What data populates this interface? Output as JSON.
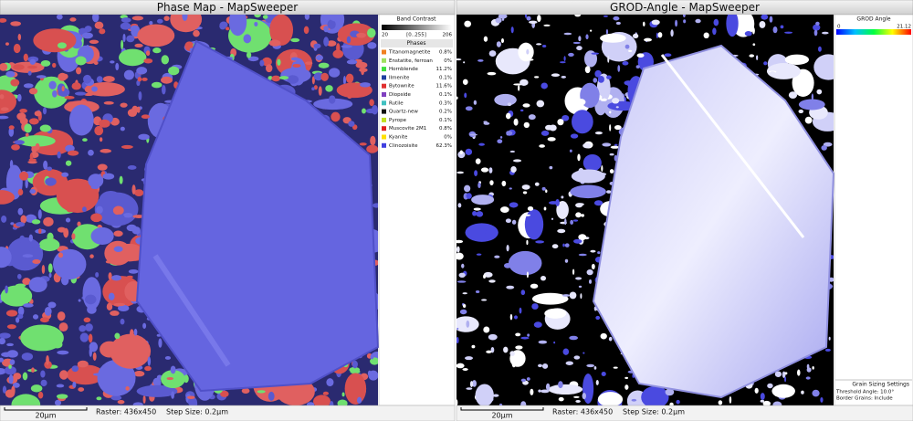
{
  "left_panel": {
    "title": "Phase Map - MapSweeper",
    "band_contrast": {
      "title": "Band Contrast",
      "min": "20",
      "range": "[0..255]",
      "max": "206"
    },
    "phases": {
      "title": "Phases",
      "rows": [
        {
          "name": "Titanomagnetite",
          "value": "0.8%",
          "color": "#f08020"
        },
        {
          "name": "Enstatite, ferroan",
          "value": "0%",
          "color": "#a0e060"
        },
        {
          "name": "Hornblende",
          "value": "11.2%",
          "color": "#40e040"
        },
        {
          "name": "Ilmenite",
          "value": "0.1%",
          "color": "#2040a0"
        },
        {
          "name": "Bytownite",
          "value": "11.6%",
          "color": "#e03030"
        },
        {
          "name": "Diopside",
          "value": "0.1%",
          "color": "#8040c0"
        },
        {
          "name": "Rutile",
          "value": "0.3%",
          "color": "#40c0c0"
        },
        {
          "name": "Quartz-new",
          "value": "0.2%",
          "color": "#101010"
        },
        {
          "name": "Pyrope",
          "value": "0.1%",
          "color": "#c0e020"
        },
        {
          "name": "Muscovite 2M1",
          "value": "0.8%",
          "color": "#e02020"
        },
        {
          "name": "Kyanite",
          "value": "0%",
          "color": "#ffe000"
        },
        {
          "name": "Clinozoisite",
          "value": "62.3%",
          "color": "#4040e0"
        }
      ]
    },
    "scale_bar": "20μm",
    "raster": "Raster: 436x450",
    "step": "Step Size: 0.2μm"
  },
  "right_panel": {
    "title": "GROD-Angle - MapSweeper",
    "grod": {
      "title": "GROD Angle",
      "min": "0",
      "max": "21.12"
    },
    "settings": {
      "title": "Grain Sizing Settings",
      "lines": [
        "Threshold Angle: 10.0°",
        "Border Grains: Include"
      ]
    },
    "scale_bar": "20μm",
    "raster": "Raster: 436x450",
    "step": "Step Size: 0.2μm"
  }
}
